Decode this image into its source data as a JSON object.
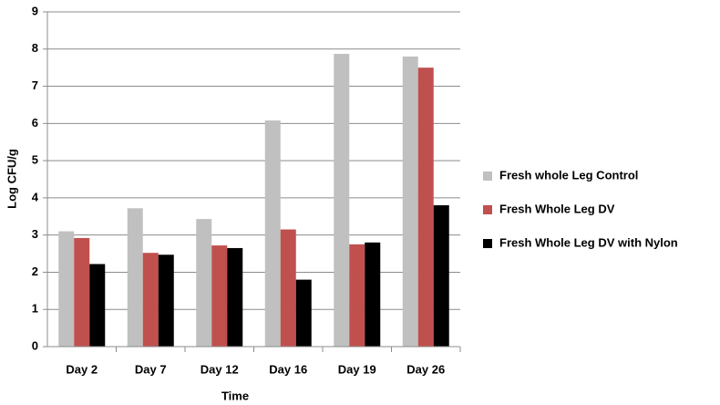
{
  "chart_data": {
    "type": "bar",
    "x_label": "Time",
    "y_label": "Log CFU/g",
    "categories": [
      "Day 2",
      "Day 7",
      "Day 12",
      "Day 16",
      "Day 19",
      "Day 26"
    ],
    "series": [
      {
        "name": "Fresh whole Leg Control",
        "color": "#c0c0c0",
        "values": [
          3.1,
          3.72,
          3.43,
          6.08,
          7.87,
          7.8
        ]
      },
      {
        "name": "Fresh Whole Leg DV",
        "color": "#c0504d",
        "values": [
          2.92,
          2.52,
          2.72,
          3.15,
          2.75,
          7.5
        ]
      },
      {
        "name": "Fresh Whole Leg DV with Nylon",
        "color": "#000000",
        "values": [
          2.22,
          2.47,
          2.65,
          1.8,
          2.8,
          3.8
        ]
      }
    ],
    "ylim": [
      0,
      9
    ],
    "yticks": [
      0,
      1,
      2,
      3,
      4,
      5,
      6,
      7,
      8,
      9
    ],
    "grid": true,
    "legend": "right"
  }
}
